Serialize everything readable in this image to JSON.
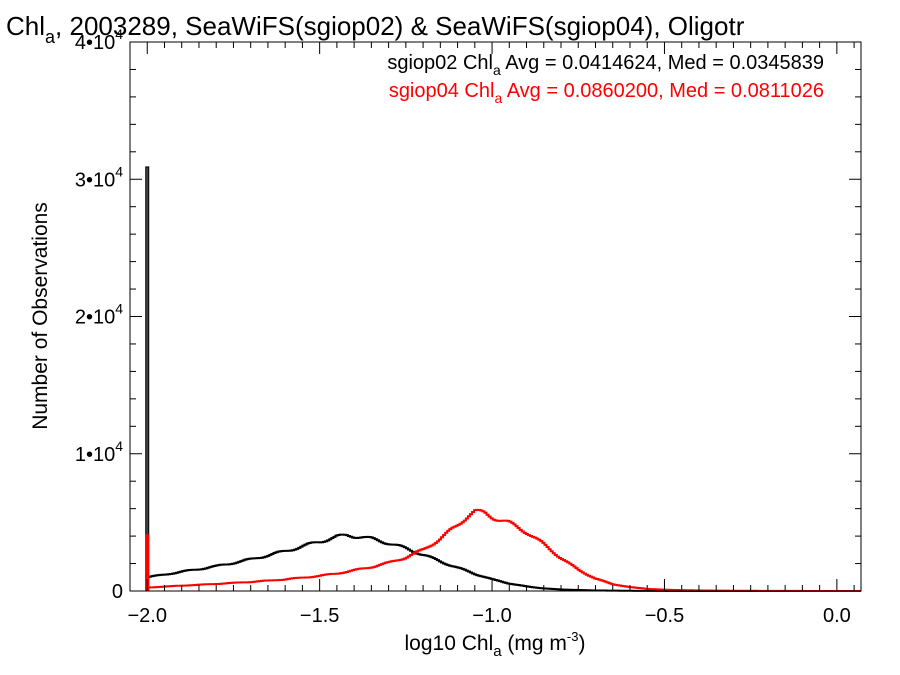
{
  "chart_data": {
    "type": "line",
    "title": {
      "pre": "Chl",
      "sub": "a",
      "post": ", 2003289, SeaWiFS(sgiop02) & SeaWiFS(sgiop04), Oligotr"
    },
    "xlabel": {
      "pre": "log10 Chl",
      "sub": "a",
      "mid": " (mg m",
      "sup": "-3",
      "post": ")"
    },
    "ylabel": "Number of Observations",
    "xlim": [
      -2.05,
      0.07
    ],
    "ylim": [
      0,
      40000
    ],
    "x_ticks": [
      -2.0,
      -1.5,
      -1.0,
      -0.5,
      0.0
    ],
    "x_tick_labels": [
      "−2.0",
      "−1.5",
      "−1.0",
      "−0.5",
      "0.0"
    ],
    "y_ticks": [
      {
        "value": 0,
        "mant": "0",
        "exp": ""
      },
      {
        "value": 10000,
        "mant": "1•10",
        "exp": "4"
      },
      {
        "value": 20000,
        "mant": "2•10",
        "exp": "4"
      },
      {
        "value": 30000,
        "mant": "3•10",
        "exp": "4"
      },
      {
        "value": 40000,
        "mant": "4•10",
        "exp": "4"
      }
    ],
    "grid": false,
    "legend_position": "top-right",
    "series": [
      {
        "name": "sgiop02",
        "color": "#000000",
        "stats_label": {
          "pre": "sgiop02 Chl",
          "sub": "a",
          "post": " Avg = 0.0414624, Med = 0.0345839"
        },
        "spike": {
          "x": -2.0,
          "value": 30900
        },
        "points": [
          [
            -2.0,
            1000
          ],
          [
            -1.95,
            1200
          ],
          [
            -1.9,
            1400
          ],
          [
            -1.85,
            1600
          ],
          [
            -1.8,
            1800
          ],
          [
            -1.75,
            2050
          ],
          [
            -1.7,
            2300
          ],
          [
            -1.65,
            2600
          ],
          [
            -1.6,
            2900
          ],
          [
            -1.55,
            3250
          ],
          [
            -1.5,
            3600
          ],
          [
            -1.45,
            3950
          ],
          [
            -1.42,
            4050
          ],
          [
            -1.38,
            3950
          ],
          [
            -1.35,
            3800
          ],
          [
            -1.3,
            3500
          ],
          [
            -1.25,
            3100
          ],
          [
            -1.2,
            2650
          ],
          [
            -1.15,
            2150
          ],
          [
            -1.1,
            1700
          ],
          [
            -1.05,
            1250
          ],
          [
            -1.0,
            850
          ],
          [
            -0.95,
            550
          ],
          [
            -0.9,
            330
          ],
          [
            -0.85,
            190
          ],
          [
            -0.8,
            110
          ],
          [
            -0.7,
            40
          ],
          [
            -0.6,
            15
          ],
          [
            -0.5,
            5
          ],
          [
            -0.3,
            0
          ],
          [
            0.07,
            0
          ]
        ]
      },
      {
        "name": "sgiop04",
        "color": "#ff0000",
        "stats_label": {
          "pre": "sgiop04 Chl",
          "sub": "a",
          "post": " Avg = 0.0860200, Med = 0.0811026"
        },
        "spike": {
          "x": -2.0,
          "value": 4100
        },
        "points": [
          [
            -2.0,
            250
          ],
          [
            -1.95,
            320
          ],
          [
            -1.9,
            390
          ],
          [
            -1.85,
            450
          ],
          [
            -1.8,
            520
          ],
          [
            -1.75,
            590
          ],
          [
            -1.7,
            660
          ],
          [
            -1.65,
            750
          ],
          [
            -1.6,
            850
          ],
          [
            -1.55,
            970
          ],
          [
            -1.5,
            1100
          ],
          [
            -1.45,
            1280
          ],
          [
            -1.4,
            1500
          ],
          [
            -1.35,
            1750
          ],
          [
            -1.3,
            2050
          ],
          [
            -1.25,
            2450
          ],
          [
            -1.2,
            3000
          ],
          [
            -1.15,
            3800
          ],
          [
            -1.1,
            4800
          ],
          [
            -1.07,
            5500
          ],
          [
            -1.05,
            5800
          ],
          [
            -1.02,
            5650
          ],
          [
            -1.0,
            5400
          ],
          [
            -0.95,
            4950
          ],
          [
            -0.9,
            4300
          ],
          [
            -0.85,
            3400
          ],
          [
            -0.8,
            2400
          ],
          [
            -0.75,
            1550
          ],
          [
            -0.7,
            900
          ],
          [
            -0.65,
            500
          ],
          [
            -0.6,
            280
          ],
          [
            -0.55,
            160
          ],
          [
            -0.5,
            90
          ],
          [
            -0.4,
            40
          ],
          [
            -0.3,
            20
          ],
          [
            -0.2,
            10
          ],
          [
            -0.1,
            5
          ],
          [
            0.0,
            0
          ],
          [
            0.07,
            0
          ]
        ]
      }
    ]
  }
}
